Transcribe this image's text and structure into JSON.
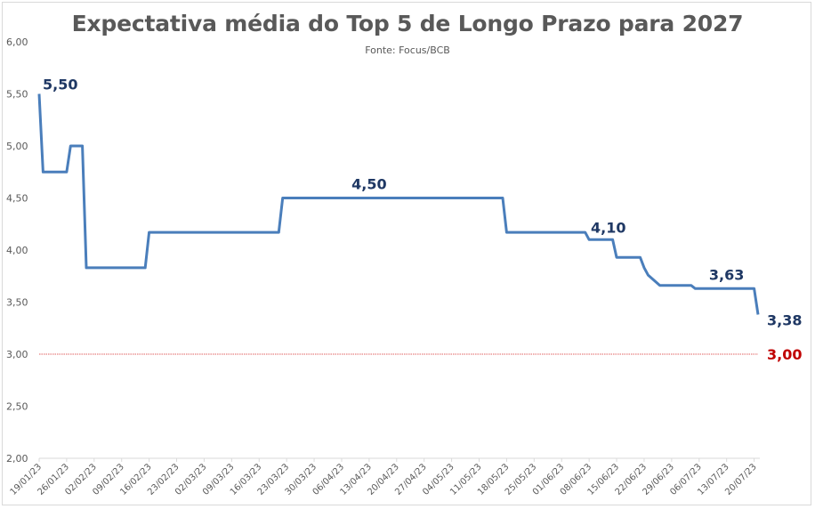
{
  "chart_data": {
    "type": "line",
    "title": "Expectativa média do Top 5 de Longo Prazo para 2027",
    "subtitle": "Fonte: Focus/BCB",
    "xlabel": "",
    "ylabel": "",
    "ylim": [
      2.0,
      6.0
    ],
    "y_ticks": [
      "2,00",
      "2,50",
      "3,00",
      "3,50",
      "4,00",
      "4,50",
      "5,00",
      "5,50",
      "6,00"
    ],
    "x_tick_labels": [
      "19/01/23",
      "26/01/23",
      "02/02/23",
      "09/02/23",
      "16/02/23",
      "23/02/23",
      "02/03/23",
      "09/03/23",
      "16/03/23",
      "23/03/23",
      "30/03/23",
      "06/04/23",
      "13/04/23",
      "20/04/23",
      "27/04/23",
      "04/05/23",
      "11/05/23",
      "18/05/23",
      "25/05/23",
      "01/06/23",
      "08/06/23",
      "15/06/23",
      "22/06/23",
      "29/06/23",
      "06/07/23",
      "13/07/23",
      "20/07/23"
    ],
    "grid": false,
    "colors": {
      "line": "#4a7ebb",
      "target": "#e06060",
      "label": "#1f3864",
      "target_label": "#c00000"
    },
    "series": [
      {
        "x": [
          "19/01/23",
          "20/01/23",
          "21/01/23",
          "25/01/23",
          "26/01/23",
          "27/01/23",
          "30/01/23",
          "31/01/23",
          "08/02/23",
          "09/02/23",
          "14/02/23",
          "15/02/23",
          "16/02/23",
          "17/02/23",
          "01/03/23",
          "21/03/23",
          "22/03/23",
          "10/05/23",
          "11/05/23",
          "16/05/23",
          "17/05/23",
          "18/05/23",
          "19/05/23",
          "06/06/23",
          "07/06/23",
          "08/06/23",
          "12/06/23",
          "13/06/23",
          "14/06/23",
          "15/06/23",
          "20/06/23",
          "21/06/23",
          "22/06/23",
          "23/06/23",
          "26/06/23",
          "30/06/23",
          "03/07/23",
          "04/07/23",
          "05/07/23",
          "06/07/23",
          "18/07/23",
          "19/07/23",
          "20/07/23",
          "21/07/23"
        ],
        "values": [
          5.5,
          4.75,
          4.75,
          4.75,
          4.75,
          5.0,
          5.0,
          3.83,
          3.83,
          3.83,
          3.83,
          3.83,
          4.17,
          4.17,
          4.17,
          4.17,
          4.5,
          4.5,
          4.5,
          4.5,
          4.5,
          4.17,
          4.17,
          4.17,
          4.17,
          4.1,
          4.1,
          4.1,
          4.1,
          3.93,
          3.93,
          3.93,
          3.83,
          3.76,
          3.66,
          3.66,
          3.66,
          3.66,
          3.63,
          3.63,
          3.63,
          3.63,
          3.63,
          3.38
        ]
      }
    ],
    "reference_line": {
      "value": 3.0,
      "label": "3,00"
    },
    "data_labels": [
      {
        "date": "19/01/23",
        "value": 5.5,
        "text": "5,50",
        "kind": "series"
      },
      {
        "date": "13/04/23",
        "value": 4.5,
        "text": "4,50",
        "kind": "series"
      },
      {
        "date": "12/06/23",
        "value": 4.1,
        "text": "4,10",
        "kind": "series"
      },
      {
        "date": "13/07/23",
        "value": 3.63,
        "text": "3,63",
        "kind": "series"
      },
      {
        "date": "21/07/23",
        "value": 3.38,
        "text": "3,38",
        "kind": "series"
      },
      {
        "date": "21/07/23",
        "value": 3.0,
        "text": "3,00",
        "kind": "target"
      }
    ]
  }
}
